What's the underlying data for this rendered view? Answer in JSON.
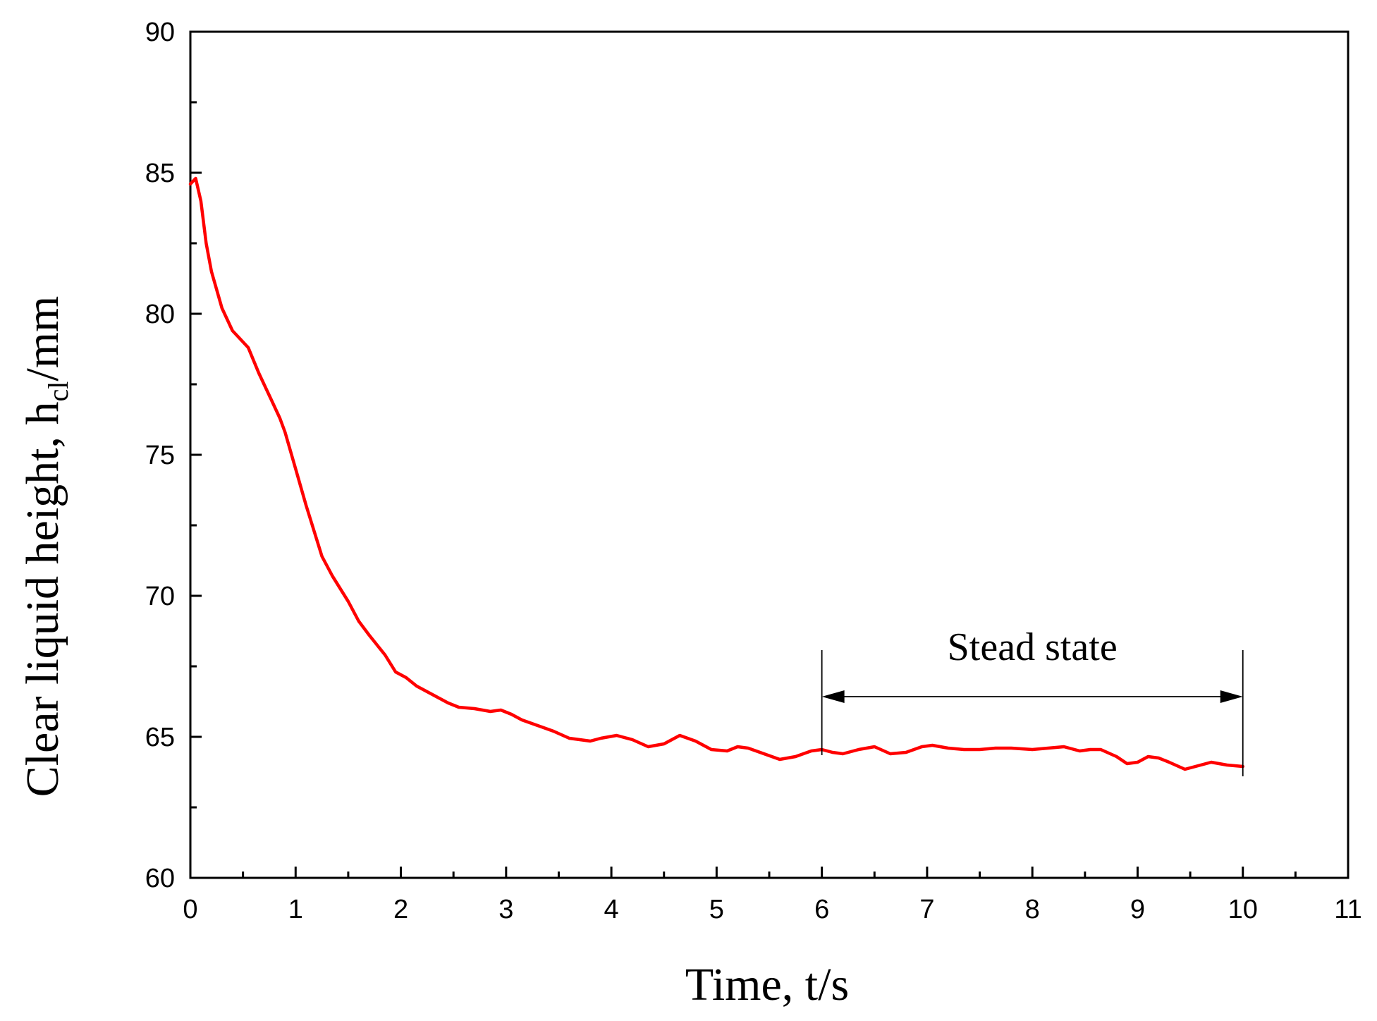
{
  "chart_data": {
    "type": "line",
    "title": "",
    "xlabel": "Time, t/s",
    "ylabel": {
      "main": "Clear liquid height, h",
      "subscript": "cl",
      "suffix": "/mm"
    },
    "xlim": [
      0,
      11
    ],
    "ylim": [
      60,
      90
    ],
    "x_ticks": [
      0,
      1,
      2,
      3,
      4,
      5,
      6,
      7,
      8,
      9,
      10,
      11
    ],
    "y_ticks": [
      60,
      65,
      70,
      75,
      80,
      85,
      90
    ],
    "x_tick_labels": [
      "0",
      "1",
      "2",
      "3",
      "4",
      "5",
      "6",
      "7",
      "8",
      "9",
      "10",
      "11"
    ],
    "y_tick_labels": [
      "60",
      "65",
      "70",
      "75",
      "80",
      "85",
      "90"
    ],
    "grid": false,
    "series": [
      {
        "name": "clear liquid height",
        "color": "#ff0000",
        "x": [
          0.0,
          0.05,
          0.1,
          0.15,
          0.2,
          0.3,
          0.4,
          0.45,
          0.55,
          0.65,
          0.75,
          0.85,
          0.9,
          1.0,
          1.1,
          1.15,
          1.25,
          1.35,
          1.5,
          1.6,
          1.7,
          1.85,
          1.95,
          2.05,
          2.15,
          2.3,
          2.45,
          2.55,
          2.7,
          2.85,
          2.95,
          3.05,
          3.15,
          3.3,
          3.45,
          3.6,
          3.8,
          3.9,
          4.05,
          4.2,
          4.35,
          4.5,
          4.65,
          4.8,
          4.95,
          5.1,
          5.2,
          5.3,
          5.45,
          5.6,
          5.75,
          5.9,
          6.0,
          6.1,
          6.2,
          6.35,
          6.5,
          6.65,
          6.8,
          6.95,
          7.05,
          7.2,
          7.35,
          7.5,
          7.65,
          7.8,
          8.0,
          8.15,
          8.3,
          8.45,
          8.55,
          8.65,
          8.8,
          8.9,
          9.0,
          9.1,
          9.2,
          9.3,
          9.45,
          9.6,
          9.7,
          9.85,
          10.0
        ],
        "y": [
          84.6,
          84.8,
          84.0,
          82.5,
          81.5,
          80.2,
          79.4,
          79.2,
          78.8,
          77.9,
          77.1,
          76.3,
          75.8,
          74.5,
          73.2,
          72.6,
          71.4,
          70.7,
          69.8,
          69.1,
          68.6,
          67.9,
          67.3,
          67.1,
          66.8,
          66.5,
          66.2,
          66.05,
          66.0,
          65.9,
          65.95,
          65.8,
          65.6,
          65.4,
          65.2,
          64.95,
          64.85,
          64.95,
          65.05,
          64.9,
          64.65,
          64.75,
          65.05,
          64.85,
          64.55,
          64.5,
          64.65,
          64.6,
          64.4,
          64.2,
          64.3,
          64.5,
          64.55,
          64.45,
          64.4,
          64.55,
          64.65,
          64.4,
          64.45,
          64.65,
          64.7,
          64.6,
          64.55,
          64.55,
          64.6,
          64.6,
          64.55,
          64.6,
          64.65,
          64.5,
          64.55,
          64.55,
          64.3,
          64.05,
          64.1,
          64.3,
          64.25,
          64.1,
          63.85,
          64.0,
          64.1,
          64.0,
          63.95
        ]
      }
    ],
    "annotation": {
      "text": "Stead state",
      "x_start": 6.0,
      "x_end": 10.0,
      "arrow_y": 64.55
    }
  }
}
